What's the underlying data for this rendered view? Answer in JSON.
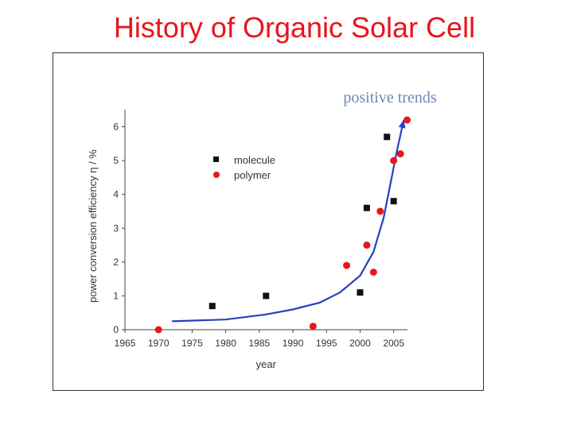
{
  "slide": {
    "title": "History of Organic Solar Cell"
  },
  "colors": {
    "title": "#e8141c",
    "trend": "#2b3fc0",
    "polymer": "#e3191c",
    "molecule": "#111111",
    "annotation": "#6f86b8"
  },
  "chart_data": {
    "type": "scatter",
    "title": "",
    "annotation": "positive trends",
    "xlabel": "year",
    "ylabel": "power conversion efficiency η / %",
    "xlim": [
      1965,
      2008
    ],
    "ylim": [
      0,
      6.6
    ],
    "xticks": [
      1965,
      1970,
      1975,
      1980,
      1985,
      1990,
      1995,
      2000,
      2005
    ],
    "yticks": [
      0,
      1,
      2,
      3,
      4,
      5,
      6
    ],
    "legend_position": "upper-left",
    "series": [
      {
        "name": "molecule",
        "marker": "square",
        "x": [
          1978,
          1986,
          2000,
          2001,
          2004,
          2005
        ],
        "y": [
          0.7,
          1.0,
          1.1,
          3.6,
          5.7,
          3.8
        ]
      },
      {
        "name": "polymer",
        "marker": "circle",
        "x": [
          1970,
          1993,
          1998,
          2001,
          2002,
          2003,
          2005,
          2006,
          2007
        ],
        "y": [
          0.0,
          0.1,
          1.9,
          2.5,
          1.7,
          3.5,
          5.0,
          5.2,
          6.2
        ]
      }
    ],
    "trend_line": {
      "name": "positive trends",
      "x": [
        1972,
        1980,
        1986,
        1990,
        1994,
        1997,
        2000,
        2002,
        2003.5,
        2004.5,
        2005.5,
        2006.5
      ],
      "y": [
        0.25,
        0.3,
        0.45,
        0.6,
        0.8,
        1.1,
        1.6,
        2.3,
        3.3,
        4.3,
        5.3,
        6.2
      ]
    }
  }
}
